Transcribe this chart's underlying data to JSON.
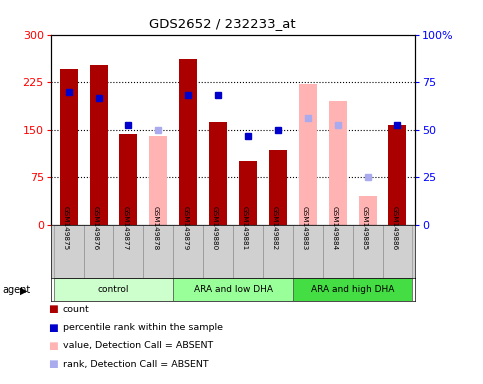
{
  "title": "GDS2652 / 232233_at",
  "samples": [
    "GSM149875",
    "GSM149876",
    "GSM149877",
    "GSM149878",
    "GSM149879",
    "GSM149880",
    "GSM149881",
    "GSM149882",
    "GSM149883",
    "GSM149884",
    "GSM149885",
    "GSM149886"
  ],
  "groups": [
    {
      "label": "control",
      "start": 0,
      "end": 4
    },
    {
      "label": "ARA and low DHA",
      "start": 4,
      "end": 8
    },
    {
      "label": "ARA and high DHA",
      "start": 8,
      "end": 12
    }
  ],
  "group_colors": [
    "#ccffcc",
    "#99ff99",
    "#44dd44"
  ],
  "count_values": [
    245,
    252,
    143,
    null,
    262,
    162,
    100,
    118,
    null,
    null,
    null,
    157
  ],
  "count_absent": [
    null,
    null,
    null,
    140,
    null,
    null,
    null,
    null,
    222,
    195,
    45,
    null
  ],
  "rank_values": [
    210,
    200,
    157,
    null,
    205,
    205,
    140,
    150,
    null,
    null,
    null,
    158
  ],
  "rank_absent": [
    null,
    null,
    null,
    150,
    null,
    null,
    null,
    null,
    168,
    158,
    75,
    null
  ],
  "ylim": [
    0,
    300
  ],
  "y_ticks": [
    0,
    75,
    150,
    225,
    300
  ],
  "y_right_ticks": [
    0,
    25,
    50,
    75,
    100
  ],
  "bar_color_dark": "#aa0000",
  "bar_color_absent": "#ffb3b3",
  "rank_color_present": "#0000cc",
  "rank_color_absent": "#aaaaee"
}
